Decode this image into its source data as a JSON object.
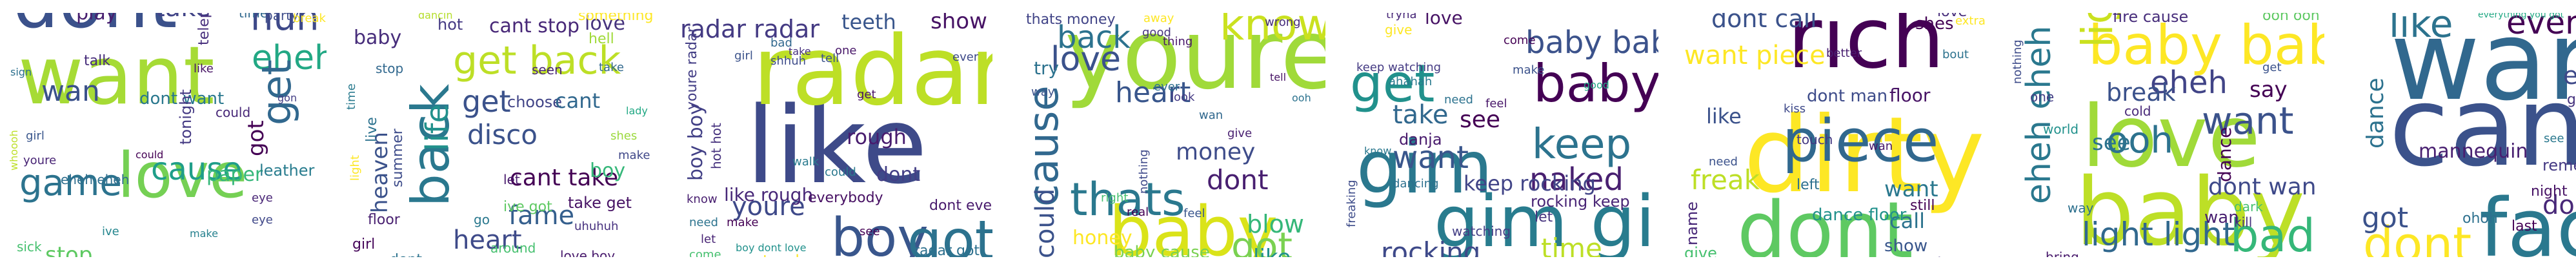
{
  "panels": [
    {
      "id": "cloud-1",
      "words": [
        {
          "t": "want",
          "c": "#a6db35"
        },
        {
          "t": "dont",
          "c": "#3b518b"
        },
        {
          "t": "love",
          "c": "#75d054"
        },
        {
          "t": "game",
          "c": "#2c738e"
        },
        {
          "t": "huh",
          "c": "#3e4989"
        },
        {
          "t": "eheh",
          "c": "#22a884"
        },
        {
          "t": "take",
          "c": "#414487"
        },
        {
          "t": "get",
          "c": "#31688e"
        },
        {
          "t": "cause",
          "c": "#1f9e89"
        },
        {
          "t": "wan",
          "c": "#3b528b"
        },
        {
          "t": "stop",
          "c": "#5ec962"
        },
        {
          "t": "play",
          "c": "#481f70"
        },
        {
          "t": "dont want",
          "c": "#2a788e"
        },
        {
          "t": "paper",
          "c": "#35b779"
        },
        {
          "t": "leather",
          "c": "#287c8e"
        },
        {
          "t": "got",
          "c": "#440154"
        },
        {
          "t": "tonight",
          "c": "#443983"
        },
        {
          "t": "eheh eheh",
          "c": "#2e6e8e"
        },
        {
          "t": "talk",
          "c": "#472d7b"
        },
        {
          "t": "eye",
          "c": "#482576"
        },
        {
          "t": "youre",
          "c": "#482475"
        },
        {
          "t": "telephone",
          "c": "#472f7d"
        },
        {
          "t": "time",
          "c": "#31688e"
        },
        {
          "t": "party",
          "c": "#3e4c8a"
        },
        {
          "t": "break",
          "c": "#fde725"
        },
        {
          "t": "could",
          "c": "#482878"
        },
        {
          "t": "sick",
          "c": "#46c06f"
        },
        {
          "t": "whoooh",
          "c": "#bddf26"
        },
        {
          "t": "girl",
          "c": "#39568c"
        },
        {
          "t": "sign",
          "c": "#2d708e"
        },
        {
          "t": "ive",
          "c": "#24868e"
        },
        {
          "t": "eye",
          "c": "#3f4788"
        },
        {
          "t": "make",
          "c": "#26818e"
        },
        {
          "t": "say",
          "c": "#440154"
        },
        {
          "t": "like",
          "c": "#471365"
        },
        {
          "t": "gon",
          "c": "#433e85"
        },
        {
          "t": "could",
          "c": "#440154"
        }
      ]
    },
    {
      "id": "cloud-2",
      "words": [
        {
          "t": "back",
          "c": "#2a788e"
        },
        {
          "t": "get back",
          "c": "#bddf26"
        },
        {
          "t": "fame",
          "c": "#355f8d"
        },
        {
          "t": "life",
          "c": "#21918c"
        },
        {
          "t": "get",
          "c": "#3b528b"
        },
        {
          "t": "heart",
          "c": "#3e4a89"
        },
        {
          "t": "disco",
          "c": "#3b528b"
        },
        {
          "t": "cant take",
          "c": "#440154"
        },
        {
          "t": "baby",
          "c": "#472d7b"
        },
        {
          "t": "heaven",
          "c": "#3b528b"
        },
        {
          "t": "cant stop",
          "c": "#482878"
        },
        {
          "t": "love",
          "c": "#46337e"
        },
        {
          "t": "something",
          "c": "#fde725"
        },
        {
          "t": "hell",
          "c": "#a0da39"
        },
        {
          "t": "choose",
          "c": "#414487"
        },
        {
          "t": "cant",
          "c": "#31688e"
        },
        {
          "t": "boy",
          "c": "#35b779"
        },
        {
          "t": "live",
          "c": "#2c728e"
        },
        {
          "t": "summer",
          "c": "#3e4c8a"
        },
        {
          "t": "floor",
          "c": "#481f70"
        },
        {
          "t": "girl",
          "c": "#450559"
        },
        {
          "t": "take get",
          "c": "#471365"
        },
        {
          "t": "ive got",
          "c": "#5ec962"
        },
        {
          "t": "around",
          "c": "#46c06f"
        },
        {
          "t": "go",
          "c": "#2a788e"
        },
        {
          "t": "love boy",
          "c": "#481a6c"
        },
        {
          "t": "dont",
          "c": "#2c738e"
        },
        {
          "t": "stop",
          "c": "#31688e"
        },
        {
          "t": "hot",
          "c": "#443983"
        },
        {
          "t": "seen",
          "c": "#482576"
        },
        {
          "t": "let",
          "c": "#481a6c"
        },
        {
          "t": "uhuhuh",
          "c": "#46307e"
        },
        {
          "t": "dancin",
          "c": "#b5de2b"
        },
        {
          "t": "time",
          "c": "#297a8e"
        },
        {
          "t": "light",
          "c": "#fde725"
        },
        {
          "t": "shes",
          "c": "#9bd93c"
        },
        {
          "t": "lady",
          "c": "#22a884"
        },
        {
          "t": "make",
          "c": "#3f4788"
        },
        {
          "t": "take",
          "c": "#31688e"
        }
      ]
    },
    {
      "id": "cloud-3",
      "words": [
        {
          "t": "like",
          "c": "#3e4a89"
        },
        {
          "t": "radar",
          "c": "#bddf26"
        },
        {
          "t": "boy",
          "c": "#39568c"
        },
        {
          "t": "got",
          "c": "#2c728e"
        },
        {
          "t": "radar radar",
          "c": "#443a83"
        },
        {
          "t": "teeth",
          "c": "#39568c"
        },
        {
          "t": "show",
          "c": "#471365"
        },
        {
          "t": "youre",
          "c": "#3e4989"
        },
        {
          "t": "boy boy",
          "c": "#424086"
        },
        {
          "t": "rough",
          "c": "#481c6e"
        },
        {
          "t": "like rough",
          "c": "#482878"
        },
        {
          "t": "dont",
          "c": "#433e85"
        },
        {
          "t": "hot hot",
          "c": "#46327e"
        },
        {
          "t": "get radar",
          "c": "#fde725"
        },
        {
          "t": "radar got",
          "c": "#2d708e"
        },
        {
          "t": "youre radar",
          "c": "#433e85"
        },
        {
          "t": "everybody",
          "c": "#471063"
        },
        {
          "t": "dont even",
          "c": "#481a6c"
        },
        {
          "t": "make",
          "c": "#440154"
        },
        {
          "t": "bad",
          "c": "#31688e"
        },
        {
          "t": "girl",
          "c": "#3b528b"
        },
        {
          "t": "shhuh",
          "c": "#3e4c8a"
        },
        {
          "t": "need",
          "c": "#2c738e"
        },
        {
          "t": "come",
          "c": "#46c06f"
        },
        {
          "t": "tell",
          "c": "#3b528b"
        },
        {
          "t": "know",
          "c": "#481f70"
        },
        {
          "t": "walk",
          "c": "#297a8e"
        },
        {
          "t": "could",
          "c": "#2a788e"
        },
        {
          "t": "let",
          "c": "#482475"
        },
        {
          "t": "see",
          "c": "#440154"
        },
        {
          "t": "one",
          "c": "#481769"
        },
        {
          "t": "ever",
          "c": "#3e4a89"
        },
        {
          "t": "boy dont love",
          "c": "#21918c"
        },
        {
          "t": "get",
          "c": "#471365"
        },
        {
          "t": "take",
          "c": "#46307e"
        }
      ]
    },
    {
      "id": "cloud-4",
      "words": [
        {
          "t": "youre",
          "c": "#a0da39"
        },
        {
          "t": "baby",
          "c": "#dae319"
        },
        {
          "t": "cause",
          "c": "#31688e"
        },
        {
          "t": "thats",
          "c": "#2a788e"
        },
        {
          "t": "got",
          "c": "#7ad151"
        },
        {
          "t": "know",
          "c": "#cae11f"
        },
        {
          "t": "back",
          "c": "#2c728e"
        },
        {
          "t": "love",
          "c": "#3b528b"
        },
        {
          "t": "heart",
          "c": "#39568c"
        },
        {
          "t": "money",
          "c": "#3e4c8a"
        },
        {
          "t": "dont",
          "c": "#481f70"
        },
        {
          "t": "could",
          "c": "#3b528b"
        },
        {
          "t": "blow",
          "c": "#35b779"
        },
        {
          "t": "like",
          "c": "#21918c"
        },
        {
          "t": "honey",
          "c": "#fde725"
        },
        {
          "t": "baby cause",
          "c": "#7ad151"
        },
        {
          "t": "try",
          "c": "#2c728e"
        },
        {
          "t": "thats money",
          "c": "#414487"
        },
        {
          "t": "good",
          "c": "#46337e"
        },
        {
          "t": "thing",
          "c": "#481769"
        },
        {
          "t": "wrong",
          "c": "#472d7b"
        },
        {
          "t": "away",
          "c": "#fde725"
        },
        {
          "t": "ever",
          "c": "#2e6e8e"
        },
        {
          "t": "look",
          "c": "#443983"
        },
        {
          "t": "real",
          "c": "#440154"
        },
        {
          "t": "feel",
          "c": "#39568c"
        },
        {
          "t": "nothing",
          "c": "#3e4989"
        },
        {
          "t": "right",
          "c": "#46c06f"
        },
        {
          "t": "way",
          "c": "#3b528b"
        },
        {
          "t": "give",
          "c": "#481f70"
        },
        {
          "t": "come",
          "c": "#22a884"
        },
        {
          "t": "wan",
          "c": "#31688e"
        },
        {
          "t": "tell",
          "c": "#471365"
        },
        {
          "t": "ooh",
          "c": "#2c728e"
        }
      ]
    },
    {
      "id": "cloud-5",
      "words": [
        {
          "t": "gim",
          "c": "#2a788e"
        },
        {
          "t": "gim gim",
          "c": "#287c8e"
        },
        {
          "t": "baby",
          "c": "#440154"
        },
        {
          "t": "keep",
          "c": "#2c738e"
        },
        {
          "t": "baby baby",
          "c": "#3b528b"
        },
        {
          "t": "get",
          "c": "#21918c"
        },
        {
          "t": "naked",
          "c": "#481f70"
        },
        {
          "t": "want",
          "c": "#39568c"
        },
        {
          "t": "take",
          "c": "#31688e"
        },
        {
          "t": "see",
          "c": "#440154"
        },
        {
          "t": "time",
          "c": "#bddf26"
        },
        {
          "t": "rocking",
          "c": "#3e4989"
        },
        {
          "t": "keep rocking",
          "c": "#414487"
        },
        {
          "t": "rocking keep",
          "c": "#482475"
        },
        {
          "t": "love",
          "c": "#471365"
        },
        {
          "t": "danja",
          "c": "#481a6c"
        },
        {
          "t": "give",
          "c": "#fde725"
        },
        {
          "t": "let",
          "c": "#46337e"
        },
        {
          "t": "need",
          "c": "#2c728e"
        },
        {
          "t": "dancing",
          "c": "#2d708e"
        },
        {
          "t": "freaking",
          "c": "#3e4c8a"
        },
        {
          "t": "tryna",
          "c": "#482878"
        },
        {
          "t": "keep watching",
          "c": "#443a83"
        },
        {
          "t": "ahahah",
          "c": "#297a8e"
        },
        {
          "t": "watching",
          "c": "#433e85"
        },
        {
          "t": "come",
          "c": "#440154"
        },
        {
          "t": "make",
          "c": "#3b528b"
        },
        {
          "t": "feel",
          "c": "#481769"
        },
        {
          "t": "know",
          "c": "#2a788e"
        },
        {
          "t": "good",
          "c": "#22a884"
        }
      ]
    },
    {
      "id": "cloud-6",
      "words": [
        {
          "t": "dirty",
          "c": "#fde725"
        },
        {
          "t": "rich",
          "c": "#440154"
        },
        {
          "t": "dont",
          "c": "#5ec962"
        },
        {
          "t": "piece",
          "c": "#31688e"
        },
        {
          "t": "want piece",
          "c": "#fde725"
        },
        {
          "t": "dont call",
          "c": "#3b528b"
        },
        {
          "t": "freak",
          "c": "#bddf26"
        },
        {
          "t": "shes",
          "c": "#440154"
        },
        {
          "t": "love",
          "c": "#472d7b"
        },
        {
          "t": "dont man",
          "c": "#3e4c8a"
        },
        {
          "t": "floor",
          "c": "#471365"
        },
        {
          "t": "want",
          "c": "#2a788e"
        },
        {
          "t": "call",
          "c": "#2c738e"
        },
        {
          "t": "show",
          "c": "#39568c"
        },
        {
          "t": "make",
          "c": "#46337e"
        },
        {
          "t": "dance floor",
          "c": "#21918c"
        },
        {
          "t": "like",
          "c": "#3b528b"
        },
        {
          "t": "name",
          "c": "#482878"
        },
        {
          "t": "give",
          "c": "#46c06f"
        },
        {
          "t": "left",
          "c": "#2d708e"
        },
        {
          "t": "still",
          "c": "#440154"
        },
        {
          "t": "kiss",
          "c": "#3e4989"
        },
        {
          "t": "better",
          "c": "#481f70"
        },
        {
          "t": "extra",
          "c": "#fde725"
        },
        {
          "t": "touch",
          "c": "#443983"
        },
        {
          "t": "bout",
          "c": "#2c728e"
        },
        {
          "t": "wan",
          "c": "#481a6c"
        },
        {
          "t": "need",
          "c": "#3b528b"
        }
      ]
    },
    {
      "id": "cloud-7",
      "words": [
        {
          "t": "baby",
          "c": "#bddf26"
        },
        {
          "t": "love",
          "c": "#a0da39"
        },
        {
          "t": "baby baby",
          "c": "#fde725"
        },
        {
          "t": "light light",
          "c": "#31688e"
        },
        {
          "t": "want",
          "c": "#3b528b"
        },
        {
          "t": "eheh eheh",
          "c": "#2a788e"
        },
        {
          "t": "ooh",
          "c": "#2c728e"
        },
        {
          "t": "eheh",
          "c": "#414487"
        },
        {
          "t": "bad",
          "c": "#35b779"
        },
        {
          "t": "light",
          "c": "#cae11f"
        },
        {
          "t": "dont wan",
          "c": "#3e4989"
        },
        {
          "t": "say",
          "c": "#440154"
        },
        {
          "t": "break",
          "c": "#3b528b"
        },
        {
          "t": "see",
          "c": "#2c738e"
        },
        {
          "t": "wan",
          "c": "#481f70"
        },
        {
          "t": "dance",
          "c": "#440154"
        },
        {
          "t": "fire cause",
          "c": "#472d7b"
        },
        {
          "t": "kill",
          "c": "#46337e"
        },
        {
          "t": "cold",
          "c": "#482878"
        },
        {
          "t": "way",
          "c": "#2d708e"
        },
        {
          "t": "nothing",
          "c": "#3e4c8a"
        },
        {
          "t": "ooh ooh",
          "c": "#5ec962"
        },
        {
          "t": "bring",
          "c": "#481a6c"
        },
        {
          "t": "one",
          "c": "#433e85"
        },
        {
          "t": "world",
          "c": "#21918c"
        },
        {
          "t": "dark",
          "c": "#46c06f"
        },
        {
          "t": "get",
          "c": "#3b528b"
        }
      ]
    },
    {
      "id": "cloud-8",
      "words": [
        {
          "t": "want",
          "c": "#31688e"
        },
        {
          "t": "cant",
          "c": "#3b528b"
        },
        {
          "t": "face",
          "c": "#2a788e"
        },
        {
          "t": "dont",
          "c": "#fde725"
        },
        {
          "t": "like",
          "c": "#2c738e"
        },
        {
          "t": "everything",
          "c": "#440154"
        },
        {
          "t": "rock",
          "c": "#5ec962"
        },
        {
          "t": "eye",
          "c": "#3e4989"
        },
        {
          "t": "dance",
          "c": "#2c728e"
        },
        {
          "t": "dont wan",
          "c": "#482878"
        },
        {
          "t": "got",
          "c": "#3b528b"
        },
        {
          "t": "mannequin",
          "c": "#481f70"
        },
        {
          "t": "remember",
          "c": "#443983"
        },
        {
          "t": "last",
          "c": "#440154"
        },
        {
          "t": "night",
          "c": "#471365"
        },
        {
          "t": "love love",
          "c": "#39568c"
        },
        {
          "t": "ohoh",
          "c": "#2d708e"
        },
        {
          "t": "gon",
          "c": "#46337e"
        },
        {
          "t": "shes got",
          "c": "#21918c"
        },
        {
          "t": "move",
          "c": "#bddf26"
        },
        {
          "t": "wan",
          "c": "#481a6c"
        },
        {
          "t": "know",
          "c": "#3e4c8a"
        },
        {
          "t": "everything you got",
          "c": "#22a884"
        },
        {
          "t": "girl",
          "c": "#433e85"
        },
        {
          "t": "talk",
          "c": "#46c06f"
        },
        {
          "t": "see",
          "c": "#2a788e"
        }
      ]
    }
  ]
}
